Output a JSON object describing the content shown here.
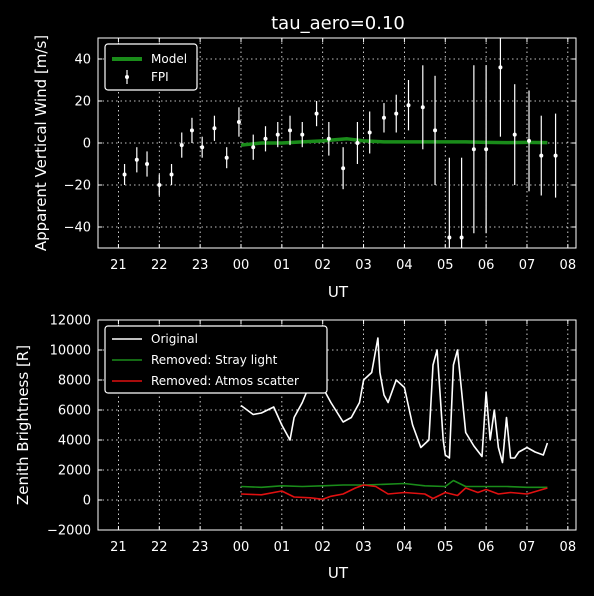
{
  "colors": {
    "background": "#000000",
    "foreground": "#ffffff",
    "model": "#1a8c1a",
    "stray": "#1a8c1a",
    "atmos": "#e01010"
  },
  "chart_data": [
    {
      "type": "line",
      "title": "tau_aero=0.10",
      "xlabel": "UT",
      "ylabel": "Apparent Vertical Wind [m/s]",
      "xlim": [
        20.5,
        32.2
      ],
      "ylim": [
        -50,
        50
      ],
      "xticks": [
        21,
        22,
        23,
        24,
        25,
        26,
        27,
        28,
        29,
        30,
        31,
        32
      ],
      "xticklabels": [
        "21",
        "22",
        "23",
        "00",
        "01",
        "02",
        "03",
        "04",
        "05",
        "06",
        "07",
        "08"
      ],
      "yticks": [
        -40,
        -20,
        0,
        20,
        40
      ],
      "yticklabels": [
        "−40",
        "−20",
        "0",
        "20",
        "40"
      ],
      "grid": true,
      "legend": {
        "position": "top-left",
        "entries": [
          "Model",
          "FPI"
        ]
      },
      "series": [
        {
          "name": "Model",
          "style": "line",
          "x": [
            24.0,
            24.5,
            25.0,
            25.5,
            26.0,
            26.3,
            26.6,
            27.0,
            27.5,
            28.0,
            28.5,
            29.0,
            29.5,
            30.0,
            30.5,
            31.0,
            31.5
          ],
          "y": [
            -1,
            0,
            0,
            0.5,
            1,
            1.5,
            2,
            1,
            0.5,
            0.5,
            0.5,
            0.5,
            0.5,
            0.3,
            0.2,
            0.3,
            0.2
          ]
        },
        {
          "name": "FPI",
          "style": "errorbar",
          "x": [
            21.15,
            21.45,
            21.7,
            22.0,
            22.3,
            22.55,
            22.8,
            23.05,
            23.35,
            23.65,
            23.95,
            24.3,
            24.6,
            24.9,
            25.2,
            25.5,
            25.85,
            26.15,
            26.5,
            26.85,
            27.15,
            27.5,
            27.8,
            28.1,
            28.45,
            28.75,
            29.1,
            29.4,
            29.7,
            30.0,
            30.35,
            30.7,
            31.05,
            31.35,
            31.7
          ],
          "y": [
            -15,
            -8,
            -10,
            -20,
            -15,
            -1,
            6,
            -2,
            7,
            -7,
            10,
            -2,
            2,
            4,
            6,
            4,
            14,
            2,
            -12,
            0,
            5,
            12,
            14,
            18,
            17,
            6,
            -45,
            -45,
            -3,
            -3,
            36,
            4,
            1,
            -6,
            -6
          ],
          "err": [
            5,
            6,
            6,
            5,
            5,
            6,
            6,
            5,
            6,
            5,
            7,
            6,
            6,
            6,
            7,
            6,
            6,
            8,
            10,
            10,
            10,
            7,
            9,
            12,
            20,
            26,
            38,
            38,
            40,
            40,
            33,
            24,
            24,
            19,
            20
          ]
        }
      ]
    },
    {
      "type": "line",
      "title": "",
      "xlabel": "UT",
      "ylabel": "Zenith Brightness [R]",
      "xlim": [
        20.5,
        32.2
      ],
      "ylim": [
        -2000,
        12000
      ],
      "xticks": [
        21,
        22,
        23,
        24,
        25,
        26,
        27,
        28,
        29,
        30,
        31,
        32
      ],
      "xticklabels": [
        "21",
        "22",
        "23",
        "00",
        "01",
        "02",
        "03",
        "04",
        "05",
        "06",
        "07",
        "08"
      ],
      "yticks": [
        -2000,
        0,
        2000,
        4000,
        6000,
        8000,
        10000,
        12000
      ],
      "yticklabels": [
        "−2000",
        "0",
        "2000",
        "4000",
        "6000",
        "8000",
        "10000",
        "12000"
      ],
      "grid": true,
      "legend": {
        "position": "top-left",
        "entries": [
          "Original",
          "Removed: Stray light",
          "Removed: Atmos scatter"
        ]
      },
      "series": [
        {
          "name": "Original",
          "x": [
            24.0,
            24.3,
            24.5,
            24.8,
            25.0,
            25.2,
            25.3,
            25.5,
            25.7,
            25.9,
            26.0,
            26.2,
            26.5,
            26.7,
            26.9,
            27.0,
            27.2,
            27.35,
            27.4,
            27.5,
            27.6,
            27.8,
            28.0,
            28.2,
            28.4,
            28.6,
            28.7,
            28.8,
            28.95,
            29.0,
            29.1,
            29.2,
            29.3,
            29.5,
            29.7,
            29.9,
            30.0,
            30.1,
            30.2,
            30.3,
            30.4,
            30.5,
            30.6,
            30.7,
            30.8,
            31.0,
            31.2,
            31.4,
            31.5
          ],
          "y": [
            6300,
            5700,
            5800,
            6200,
            5000,
            4000,
            5500,
            6500,
            7800,
            8500,
            7500,
            6500,
            5200,
            5500,
            6500,
            8000,
            8500,
            10800,
            8500,
            7000,
            6500,
            8000,
            7500,
            5000,
            3500,
            4000,
            9000,
            10000,
            4000,
            3000,
            2800,
            9000,
            10000,
            4500,
            3600,
            2900,
            7200,
            4000,
            6000,
            3500,
            2500,
            5500,
            2800,
            2800,
            3200,
            3500,
            3200,
            3000,
            3800
          ]
        },
        {
          "name": "Removed: Stray light",
          "x": [
            24.0,
            24.5,
            25.0,
            25.5,
            26.0,
            26.5,
            27.0,
            27.5,
            28.0,
            28.5,
            29.0,
            29.2,
            29.5,
            30.0,
            30.5,
            31.0,
            31.5
          ],
          "y": [
            900,
            850,
            950,
            900,
            950,
            1000,
            1000,
            1050,
            1100,
            950,
            900,
            1300,
            900,
            900,
            900,
            850,
            850
          ]
        },
        {
          "name": "Removed: Atmos scatter",
          "x": [
            24.0,
            24.5,
            25.0,
            25.3,
            25.7,
            26.0,
            26.2,
            26.5,
            26.8,
            27.0,
            27.3,
            27.6,
            28.0,
            28.5,
            28.7,
            29.0,
            29.3,
            29.5,
            29.8,
            30.0,
            30.3,
            30.6,
            31.0,
            31.5
          ],
          "y": [
            400,
            350,
            600,
            200,
            150,
            50,
            250,
            400,
            800,
            1000,
            900,
            400,
            500,
            400,
            100,
            500,
            300,
            800,
            500,
            700,
            400,
            500,
            400,
            800
          ]
        }
      ]
    }
  ]
}
